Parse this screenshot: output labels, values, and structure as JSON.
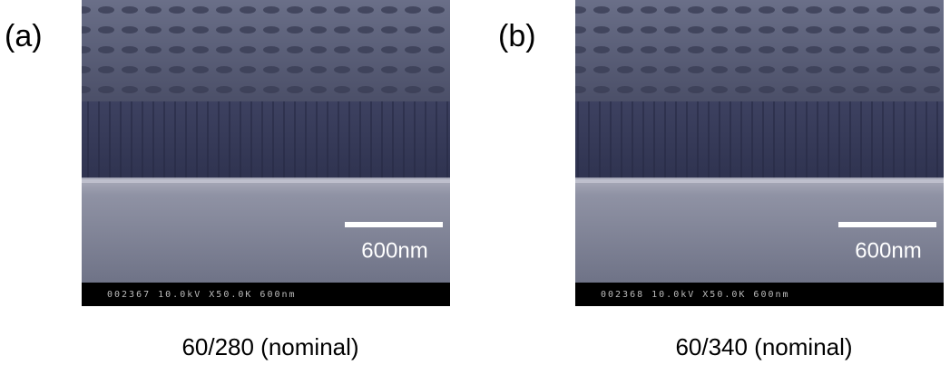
{
  "panels": [
    {
      "label": "(a)",
      "scale_bar": "600nm",
      "info_bar": "002367 10.0kV X50.0K 600nm",
      "caption": "60/280 (nominal)"
    },
    {
      "label": "(b)",
      "scale_bar": "600nm",
      "info_bar": "002368 10.0kV X50.0K 600nm",
      "caption": "60/340 (nominal)"
    }
  ]
}
